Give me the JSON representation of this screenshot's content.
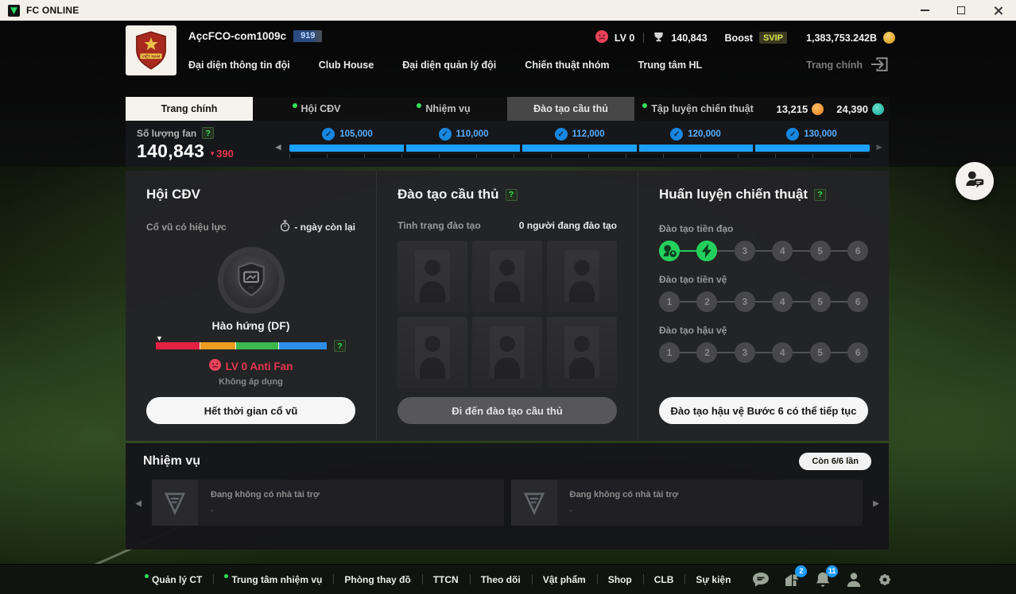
{
  "window": {
    "title": "FC ONLINE"
  },
  "header": {
    "account_name": "AçcFCO-com1009c",
    "account_badge": "919",
    "nav_items": [
      "Đại diện thông tin đội",
      "Club House",
      "Đại diện quản lý đội",
      "Chiến thuật nhóm",
      "Trung tâm HL"
    ],
    "home_label": "Trang chính",
    "stats": {
      "level": "LV 0",
      "fans": "140,843",
      "boost_label": "Boost",
      "boost_badge": "SVIP",
      "money": "1,383,753.242B"
    }
  },
  "tabs": {
    "items": [
      {
        "label": "Trang chính",
        "state": "active",
        "dot": false
      },
      {
        "label": "Hội CĐV",
        "state": "normal",
        "dot": true
      },
      {
        "label": "Nhiệm vụ",
        "state": "normal",
        "dot": true
      },
      {
        "label": "Đào tạo cầu thủ",
        "state": "selected",
        "dot": false
      },
      {
        "label": "Tập luyện chiến thuật",
        "state": "normal",
        "dot": true
      }
    ],
    "currencies": [
      {
        "value": "13,215",
        "coin": "orange"
      },
      {
        "value": "24,390",
        "coin": "teal"
      }
    ]
  },
  "fan_progress": {
    "label": "Số lượng fan",
    "help": "?",
    "count": "140,843",
    "delta": "390",
    "milestones": [
      {
        "value": "105,000",
        "checked": true
      },
      {
        "value": "110,000",
        "checked": true
      },
      {
        "value": "112,000",
        "checked": true
      },
      {
        "value": "120,000",
        "checked": true
      },
      {
        "value": "130,000",
        "checked": true
      }
    ]
  },
  "fanclub": {
    "title": "Hội CĐV",
    "effect_label": "Cổ vũ có hiệu lực",
    "days_left": "- ngày còn lại",
    "mood_name": "Hào hứng (DF)",
    "gauge_help": "?",
    "level_text": "LV 0 Anti Fan",
    "note": "Không áp dụng",
    "button_label": "Hết thời gian cổ vũ"
  },
  "player_training": {
    "title": "Đào tạo cầu thủ",
    "help": "?",
    "status_label": "Tình trạng đào tạo",
    "active_label": "0 người đang đào tạo",
    "empty_slots": 6,
    "button_label": "Đi đến đào tạo cầu thủ"
  },
  "tactics": {
    "title": "Huấn luyện chiến thuật",
    "help": "?",
    "step_numbers": [
      "1",
      "2",
      "3",
      "4",
      "5",
      "6"
    ],
    "rows": [
      {
        "label": "Đào tạo tiền đạo",
        "completed": 2,
        "total": 6,
        "done_icons": [
          "striker-icon",
          "energy-icon"
        ]
      },
      {
        "label": "Đào tạo tiền vệ",
        "completed": 0,
        "total": 6,
        "done_icons": []
      },
      {
        "label": "Đào tạo hậu vệ",
        "completed": 0,
        "total": 6,
        "done_icons": []
      }
    ],
    "button_label": "Đào tạo hậu vệ Bước 6 có thể tiếp tục"
  },
  "missions": {
    "title": "Nhiệm vụ",
    "remaining_label": "Còn 6/6 lần",
    "sponsors": [
      {
        "text": "Đang không có nhà tài trợ",
        "sub": "-"
      },
      {
        "text": "Đang không có nhà tài trợ",
        "sub": "-"
      }
    ]
  },
  "bottom_bar": {
    "items": [
      {
        "label": "Quản lý CT",
        "dot": true
      },
      {
        "label": "Trung tâm nhiệm vụ",
        "dot": true
      },
      {
        "label": "Phòng thay đồ",
        "dot": false
      },
      {
        "label": "TTCN",
        "dot": false
      },
      {
        "label": "Theo dõi",
        "dot": false
      },
      {
        "label": "Vật phẩm",
        "dot": false
      },
      {
        "label": "Shop",
        "dot": false
      },
      {
        "label": "CLB",
        "dot": false
      },
      {
        "label": "Sự kiện",
        "dot": false
      }
    ],
    "icons": [
      {
        "name": "chat-bubble-icon",
        "badge": ""
      },
      {
        "name": "stadium-flag-icon",
        "badge": "2"
      },
      {
        "name": "bell-icon",
        "badge": "11"
      },
      {
        "name": "profile-icon",
        "badge": ""
      },
      {
        "name": "settings-gear-icon",
        "badge": ""
      }
    ]
  },
  "colors": {
    "accent_green": "#35e05a",
    "accent_blue": "#1da1ff",
    "danger_red": "#e8374f",
    "coin_gold": "#e8b83a",
    "coin_orange": "#f09b3c",
    "coin_teal": "#2fc4b2",
    "svip_yellow": "#d9e84e"
  }
}
